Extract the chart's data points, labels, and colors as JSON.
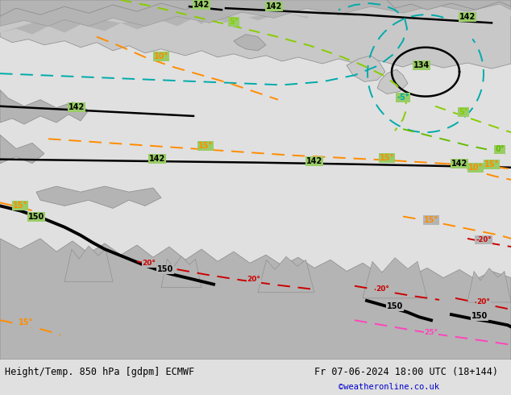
{
  "title_left": "Height/Temp. 850 hPa [gdpm] ECMWF",
  "title_right": "Fr 07-06-2024 18:00 UTC (18+144)",
  "credit": "©weatheronline.co.uk",
  "map_bg_color": "#99cc66",
  "land_color": "#b4b4b4",
  "land_edge": "#888888",
  "water_color": "#c8c8c8",
  "bottom_bg": "#e0e0e0",
  "font_color": "#000000",
  "credit_color": "#0000cc",
  "title_fontsize": 8.5,
  "credit_fontsize": 7.5,
  "black_contour_lw": 1.8,
  "thick_contour_lw": 2.8,
  "temp_lw": 1.4,
  "col_orange": "#ff8c00",
  "col_red": "#cc0000",
  "col_pink": "#ff44bb",
  "col_teal": "#00aaaa",
  "col_lgreen": "#88cc00",
  "col_dashed_green": "#77bb00"
}
